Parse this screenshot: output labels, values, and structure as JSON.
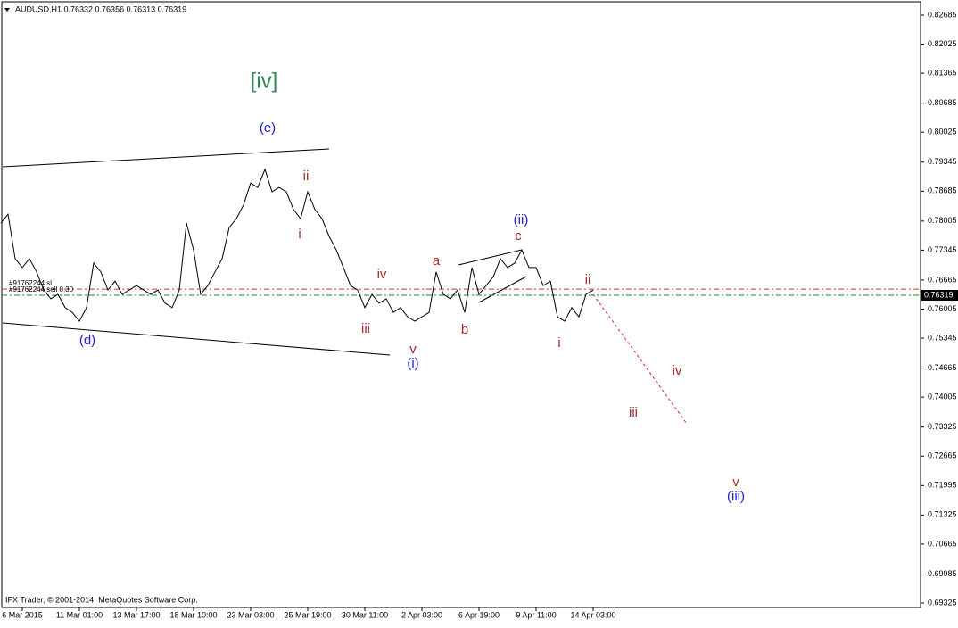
{
  "chart_data": {
    "type": "line",
    "title": "AUDUSD,H1  0.76332 0.76356 0.76313 0.76319",
    "footer": "IFX Trader, © 2001-2014, MetaQuotes Software Corp.",
    "categories": [
      null,
      null,
      null,
      "6 Mar 2015",
      null,
      null,
      null,
      null,
      null,
      null,
      null,
      "11 Mar 01:00",
      null,
      null,
      null,
      null,
      null,
      null,
      null,
      "13 Mar 17:00",
      null,
      null,
      null,
      null,
      null,
      null,
      null,
      "18 Mar 10:00",
      null,
      null,
      null,
      null,
      null,
      null,
      null,
      "23 Mar 03:00",
      null,
      null,
      null,
      null,
      null,
      null,
      null,
      "25 Mar 19:00",
      null,
      null,
      null,
      null,
      null,
      null,
      null,
      "30 Mar 11:00",
      null,
      null,
      null,
      null,
      null,
      null,
      null,
      "2 Apr 03:00",
      null,
      null,
      null,
      null,
      null,
      null,
      null,
      "6 Apr 19:00",
      null,
      null,
      null,
      null,
      null,
      null,
      null,
      "9 Apr 11:00",
      null,
      null,
      null,
      null,
      null,
      null,
      null,
      "14 Apr 03:00"
    ],
    "series": [
      {
        "name": "AUDUSD,H1",
        "color": "#000000",
        "values": [
          0.7796,
          0.7816,
          0.7715,
          0.7695,
          0.7715,
          0.7685,
          0.7644,
          0.7624,
          0.7634,
          0.7604,
          0.7593,
          0.7573,
          0.7604,
          0.7705,
          0.7685,
          0.7644,
          0.7664,
          0.7634,
          0.7644,
          0.7654,
          0.7644,
          0.7634,
          0.7644,
          0.7614,
          0.7604,
          0.7644,
          0.7796,
          0.7735,
          0.7634,
          0.7654,
          0.7685,
          0.7715,
          0.7786,
          0.7806,
          0.7837,
          0.7887,
          0.7877,
          0.7918,
          0.7867,
          0.7877,
          0.7867,
          0.7827,
          0.7806,
          0.7867,
          0.7827,
          0.7806,
          0.7766,
          0.7735,
          0.7695,
          0.7654,
          0.7644,
          0.7604,
          0.7634,
          0.7614,
          0.7624,
          0.7593,
          0.7604,
          0.7583,
          0.7573,
          0.7583,
          0.7593,
          0.7685,
          0.7634,
          0.7624,
          0.7644,
          0.7593,
          0.7695,
          0.7634,
          0.7654,
          0.7674,
          0.7715,
          0.7695,
          0.7705,
          0.7735,
          0.7695,
          0.7695,
          0.7654,
          0.7664,
          0.7583,
          0.7573,
          0.7604,
          0.7583,
          0.7634,
          0.7644
        ]
      }
    ],
    "ylim": [
      0.69224,
      0.82989
    ],
    "yticks": [
      0.82685,
      0.82025,
      0.81365,
      0.80685,
      0.80025,
      0.79345,
      0.78685,
      0.78005,
      0.77345,
      0.76665,
      0.76005,
      0.75345,
      0.74665,
      0.74005,
      0.73325,
      0.72665,
      0.71995,
      0.71325,
      0.70665,
      0.69985,
      0.69325
    ],
    "current_price": {
      "value": 0.76319,
      "label": "0.76319"
    },
    "order_lines": [
      {
        "label": "#91762244 sl",
        "value": 0.7646,
        "color": "#c0392b"
      },
      {
        "label": "#91762244 sell 0.30",
        "value": 0.76319,
        "color": "#1a8a2a"
      }
    ],
    "annotations": [
      {
        "text": "[iv]",
        "color": "#2e8b57"
      },
      {
        "text": "(e)",
        "color": "#1f1fd0"
      },
      {
        "text": "(d)",
        "color": "#1f1fd0"
      },
      {
        "text": "ii",
        "color": "#a52a2a"
      },
      {
        "text": "i",
        "color": "#a52a2a"
      },
      {
        "text": "iv",
        "color": "#a52a2a"
      },
      {
        "text": "iii",
        "color": "#a52a2a"
      },
      {
        "text": "v",
        "color": "#a52a2a"
      },
      {
        "text": "(i)",
        "color": "#1f1fd0"
      },
      {
        "text": "a",
        "color": "#a52a2a"
      },
      {
        "text": "b",
        "color": "#a52a2a"
      },
      {
        "text": "(ii)",
        "color": "#1f1fd0"
      },
      {
        "text": "c",
        "color": "#a52a2a"
      },
      {
        "text": "ii",
        "color": "#a52a2a"
      },
      {
        "text": "i",
        "color": "#a52a2a"
      },
      {
        "text": "iv",
        "color": "#a52a2a"
      },
      {
        "text": "iii",
        "color": "#a52a2a"
      },
      {
        "text": "v",
        "color": "#a52a2a"
      },
      {
        "text": "(iii)",
        "color": "#1f1fd0"
      }
    ]
  }
}
